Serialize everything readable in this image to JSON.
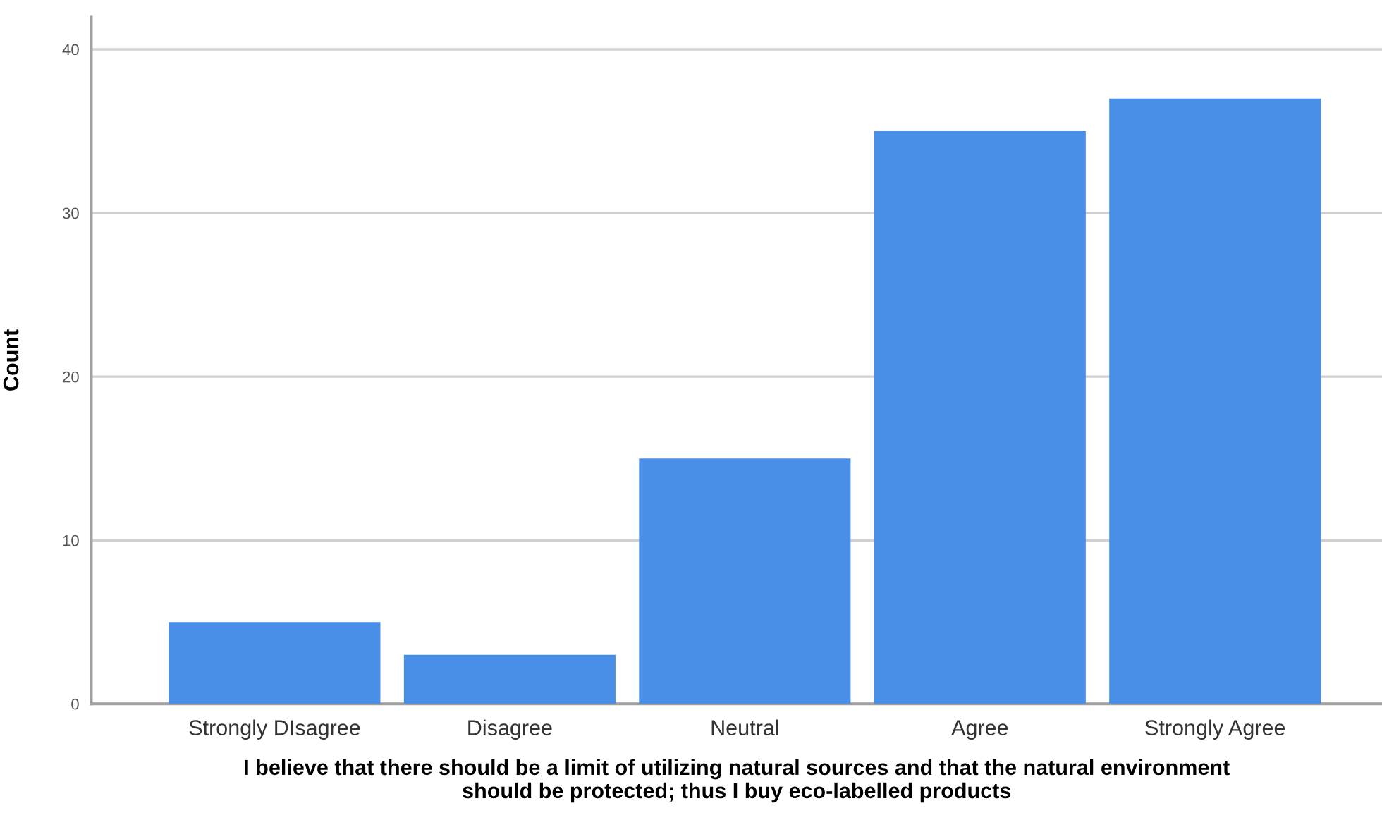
{
  "chart_data": {
    "type": "bar",
    "categories": [
      "Strongly DIsagree",
      "Disagree",
      "Neutral",
      "Agree",
      "Strongly Agree"
    ],
    "values": [
      5,
      3,
      15,
      35,
      37
    ],
    "color": "#4a8fe7",
    "xlabel": "I believe that there should be a limit of utilizing natural sources and that the natural environment\nshould be protected; thus I buy eco-labelled products",
    "ylabel": "Count",
    "ylim": [
      0,
      42
    ],
    "yticks": [
      0,
      10,
      20,
      30,
      40
    ],
    "grid": "y",
    "legend": false
  }
}
